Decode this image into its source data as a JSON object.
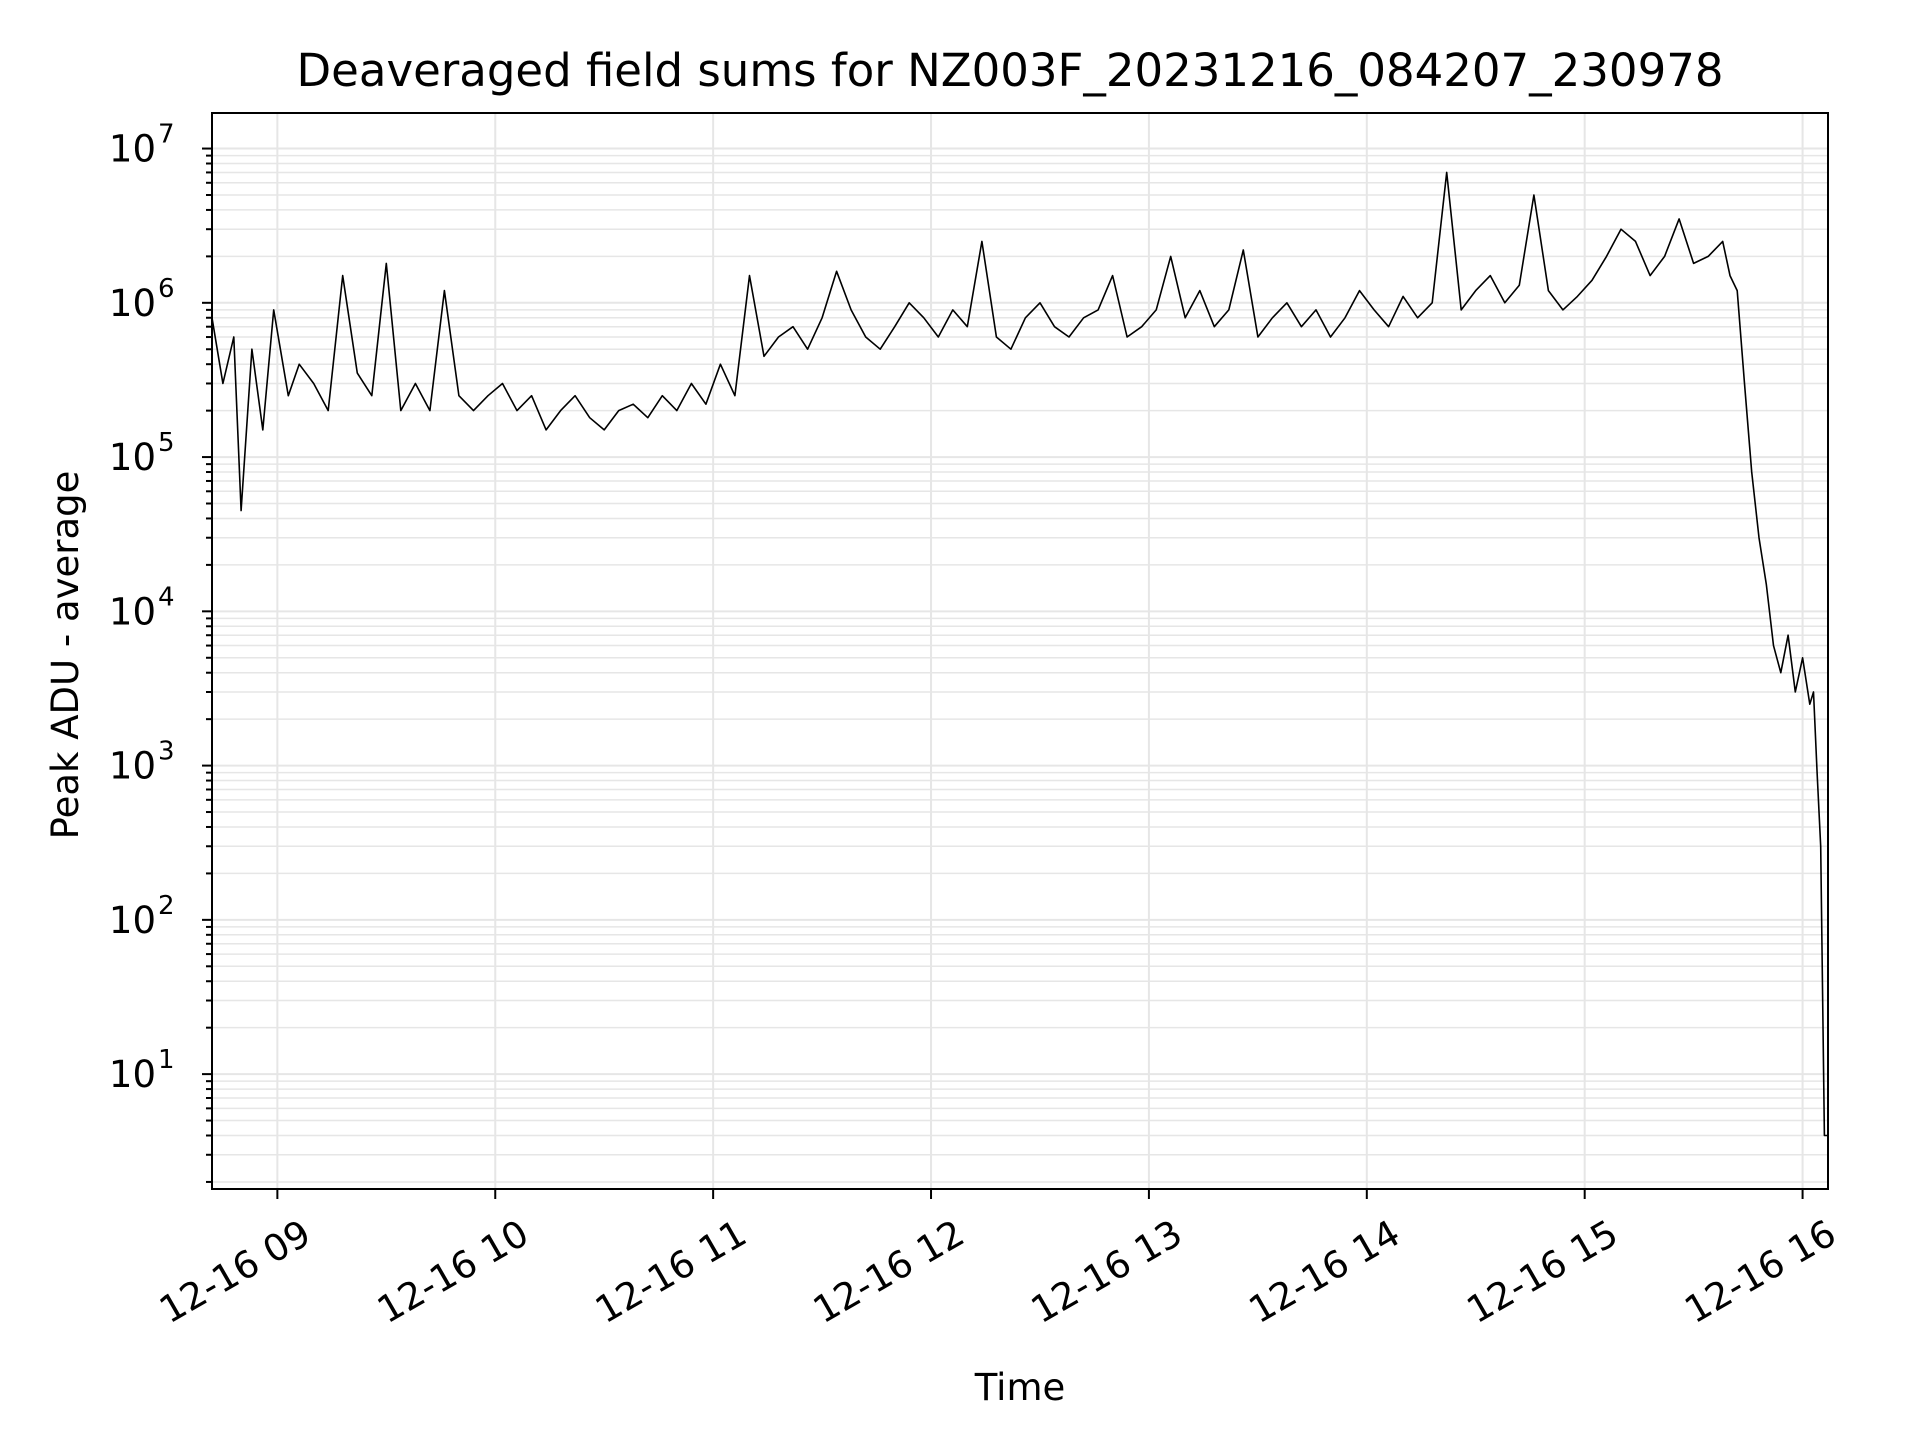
{
  "chart_data": {
    "type": "line",
    "title": "Deaveraged field sums for NZ003F_20231216_084207_230978",
    "xlabel": "Time",
    "ylabel": "Peak ADU - average",
    "y_scale": "log",
    "ylim": [
      1.8,
      17000000
    ],
    "xlim": [
      "2023-12-16 08:42",
      "2023-12-16 16:07"
    ],
    "grid": true,
    "line_color": "#000000",
    "grid_color": "#e6e6e6",
    "x_ticks": [
      "12-16 09",
      "12-16 10",
      "12-16 11",
      "12-16 12",
      "12-16 13",
      "12-16 14",
      "12-16 15",
      "12-16 16"
    ],
    "y_ticks": [
      {
        "base": "10",
        "exp": "1"
      },
      {
        "base": "10",
        "exp": "2"
      },
      {
        "base": "10",
        "exp": "3"
      },
      {
        "base": "10",
        "exp": "4"
      },
      {
        "base": "10",
        "exp": "5"
      },
      {
        "base": "10",
        "exp": "6"
      },
      {
        "base": "10",
        "exp": "7"
      }
    ],
    "series": [
      {
        "x": [
          "2023-12-16 08:42",
          "2023-12-16 08:45",
          "2023-12-16 08:48",
          "2023-12-16 08:50",
          "2023-12-16 08:53",
          "2023-12-16 08:56",
          "2023-12-16 08:59",
          "2023-12-16 09:03",
          "2023-12-16 09:06",
          "2023-12-16 09:10",
          "2023-12-16 09:14",
          "2023-12-16 09:18",
          "2023-12-16 09:22",
          "2023-12-16 09:26",
          "2023-12-16 09:30",
          "2023-12-16 09:34",
          "2023-12-16 09:38",
          "2023-12-16 09:42",
          "2023-12-16 09:46",
          "2023-12-16 09:50",
          "2023-12-16 09:54",
          "2023-12-16 09:58",
          "2023-12-16 10:02",
          "2023-12-16 10:06",
          "2023-12-16 10:10",
          "2023-12-16 10:14",
          "2023-12-16 10:18",
          "2023-12-16 10:22",
          "2023-12-16 10:26",
          "2023-12-16 10:30",
          "2023-12-16 10:34",
          "2023-12-16 10:38",
          "2023-12-16 10:42",
          "2023-12-16 10:46",
          "2023-12-16 10:50",
          "2023-12-16 10:54",
          "2023-12-16 10:58",
          "2023-12-16 11:02",
          "2023-12-16 11:06",
          "2023-12-16 11:10",
          "2023-12-16 11:14",
          "2023-12-16 11:18",
          "2023-12-16 11:22",
          "2023-12-16 11:26",
          "2023-12-16 11:30",
          "2023-12-16 11:34",
          "2023-12-16 11:38",
          "2023-12-16 11:42",
          "2023-12-16 11:46",
          "2023-12-16 11:50",
          "2023-12-16 11:54",
          "2023-12-16 11:58",
          "2023-12-16 12:02",
          "2023-12-16 12:06",
          "2023-12-16 12:10",
          "2023-12-16 12:14",
          "2023-12-16 12:18",
          "2023-12-16 12:22",
          "2023-12-16 12:26",
          "2023-12-16 12:30",
          "2023-12-16 12:34",
          "2023-12-16 12:38",
          "2023-12-16 12:42",
          "2023-12-16 12:46",
          "2023-12-16 12:50",
          "2023-12-16 12:54",
          "2023-12-16 12:58",
          "2023-12-16 13:02",
          "2023-12-16 13:06",
          "2023-12-16 13:10",
          "2023-12-16 13:14",
          "2023-12-16 13:18",
          "2023-12-16 13:22",
          "2023-12-16 13:26",
          "2023-12-16 13:30",
          "2023-12-16 13:34",
          "2023-12-16 13:38",
          "2023-12-16 13:42",
          "2023-12-16 13:46",
          "2023-12-16 13:50",
          "2023-12-16 13:54",
          "2023-12-16 13:58",
          "2023-12-16 14:02",
          "2023-12-16 14:06",
          "2023-12-16 14:10",
          "2023-12-16 14:14",
          "2023-12-16 14:18",
          "2023-12-16 14:22",
          "2023-12-16 14:26",
          "2023-12-16 14:30",
          "2023-12-16 14:34",
          "2023-12-16 14:38",
          "2023-12-16 14:42",
          "2023-12-16 14:46",
          "2023-12-16 14:50",
          "2023-12-16 14:54",
          "2023-12-16 14:58",
          "2023-12-16 15:02",
          "2023-12-16 15:06",
          "2023-12-16 15:10",
          "2023-12-16 15:14",
          "2023-12-16 15:18",
          "2023-12-16 15:22",
          "2023-12-16 15:26",
          "2023-12-16 15:30",
          "2023-12-16 15:34",
          "2023-12-16 15:38",
          "2023-12-16 15:40",
          "2023-12-16 15:42",
          "2023-12-16 15:44",
          "2023-12-16 15:46",
          "2023-12-16 15:48",
          "2023-12-16 15:50",
          "2023-12-16 15:52",
          "2023-12-16 15:54",
          "2023-12-16 15:56",
          "2023-12-16 15:58",
          "2023-12-16 16:00",
          "2023-12-16 16:02",
          "2023-12-16 16:03",
          "2023-12-16 16:04",
          "2023-12-16 16:05",
          "2023-12-16 16:06",
          "2023-12-16 16:07"
        ],
        "y": [
          800000,
          300000,
          600000,
          45000,
          500000,
          150000,
          900000,
          250000,
          400000,
          300000,
          200000,
          1500000,
          350000,
          250000,
          1800000,
          200000,
          300000,
          200000,
          1200000,
          250000,
          200000,
          250000,
          300000,
          200000,
          250000,
          150000,
          200000,
          250000,
          180000,
          150000,
          200000,
          220000,
          180000,
          250000,
          200000,
          300000,
          220000,
          400000,
          250000,
          1500000,
          450000,
          600000,
          700000,
          500000,
          800000,
          1600000,
          900000,
          600000,
          500000,
          700000,
          1000000,
          800000,
          600000,
          900000,
          700000,
          2500000,
          600000,
          500000,
          800000,
          1000000,
          700000,
          600000,
          800000,
          900000,
          1500000,
          600000,
          700000,
          900000,
          2000000,
          800000,
          1200000,
          700000,
          900000,
          2200000,
          600000,
          800000,
          1000000,
          700000,
          900000,
          600000,
          800000,
          1200000,
          900000,
          700000,
          1100000,
          800000,
          1000000,
          7000000,
          900000,
          1200000,
          1500000,
          1000000,
          1300000,
          5000000,
          1200000,
          900000,
          1100000,
          1400000,
          2000000,
          3000000,
          2500000,
          1500000,
          2000000,
          3500000,
          1800000,
          2000000,
          2500000,
          1500000,
          1200000,
          300000,
          80000,
          30000,
          15000,
          6000,
          4000,
          7000,
          3000,
          5000,
          2500,
          3000,
          900,
          300,
          4,
          4
        ]
      }
    ]
  }
}
